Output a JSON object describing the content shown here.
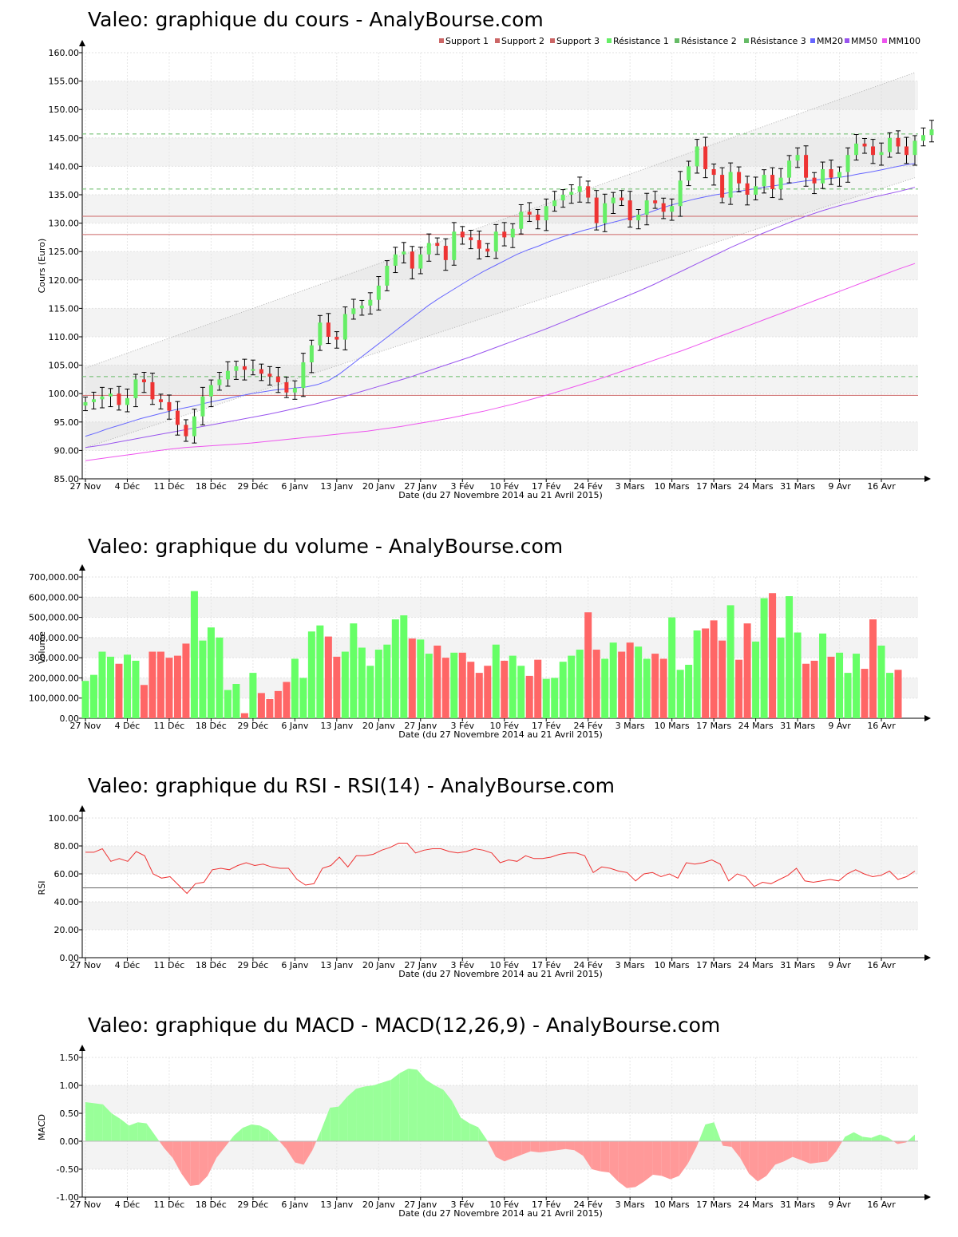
{
  "panels": {
    "price_title": "Valeo: graphique du cours - AnalyBourse.com",
    "volume_title": "Valeo: graphique du volume - AnalyBourse.com",
    "rsi_title": "Valeo: graphique du RSI - RSI(14) - AnalyBourse.com",
    "macd_title": "Valeo: graphique du MACD - MACD(12,26,9) - AnalyBourse.com",
    "xlabel": "Date (du 27 Novembre 2014 au 21 Avril 2015)",
    "price_ylabel": "Cours (Euro)",
    "volume_ylabel": "Volume",
    "rsi_ylabel": "RSI",
    "macd_ylabel": "MACD"
  },
  "colors": {
    "up": "#66ee66",
    "down": "#ee3333",
    "volume_up": "#66ff66",
    "volume_down": "#ff6666",
    "support": "#cc6666",
    "resistance": "#66bb66",
    "mm20": "#6666ff",
    "mm50": "#9955ee",
    "mm100": "#ee55ee",
    "rsi": "#ee3333",
    "macd_pos": "#99ff99",
    "macd_neg": "#ff9999"
  },
  "chart_data": [
    {
      "type": "candlestick",
      "title": "Valeo: graphique du cours - AnalyBourse.com",
      "xlabel": "Date (du 27 Novembre 2014 au 21 Avril 2015)",
      "ylabel": "Cours (Euro)",
      "ylim": [
        85,
        160
      ],
      "yticks": [
        "85.00",
        "90.00",
        "95.00",
        "100.00",
        "105.00",
        "110.00",
        "115.00",
        "120.00",
        "125.00",
        "130.00",
        "135.00",
        "140.00",
        "145.00",
        "150.00",
        "155.00",
        "160.00"
      ],
      "xticks": [
        {
          "i": 0,
          "label": "27 Nov"
        },
        {
          "i": 5,
          "label": "4 Déc"
        },
        {
          "i": 10,
          "label": "11 Déc"
        },
        {
          "i": 15,
          "label": "18 Déc"
        },
        {
          "i": 20,
          "label": "29 Déc"
        },
        {
          "i": 25,
          "label": "6 Janv"
        },
        {
          "i": 30,
          "label": "13 Janv"
        },
        {
          "i": 35,
          "label": "20 Janv"
        },
        {
          "i": 40,
          "label": "27 Janv"
        },
        {
          "i": 45,
          "label": "3 Fév"
        },
        {
          "i": 50,
          "label": "10 Fév"
        },
        {
          "i": 55,
          "label": "17 Fév"
        },
        {
          "i": 60,
          "label": "24 Fév"
        },
        {
          "i": 65,
          "label": "3 Mars"
        },
        {
          "i": 70,
          "label": "10 Mars"
        },
        {
          "i": 75,
          "label": "17 Mars"
        },
        {
          "i": 80,
          "label": "24 Mars"
        },
        {
          "i": 85,
          "label": "31 Mars"
        },
        {
          "i": 90,
          "label": "9 Avr"
        },
        {
          "i": 95,
          "label": "16 Avr"
        }
      ],
      "legend": [
        "Support 1",
        "Support 2",
        "Support 3",
        "Résistance 1",
        "Résistance 2",
        "Résistance 3",
        "MM20",
        "MM50",
        "MM100"
      ],
      "legend_position": "top-right",
      "levels": {
        "support_1": 131.2,
        "support_2": 128.0,
        "support_3": 99.7,
        "resistance_1": 145.7,
        "resistance_2": 136.0,
        "resistance_3": 103.0
      },
      "channel": {
        "upper": [
          104.5,
          156.5
        ],
        "lower": [
          90.5,
          138.0
        ]
      },
      "close": [
        98.5,
        99.0,
        99.5,
        100.0,
        98.0,
        99.2,
        102.5,
        102.0,
        99.0,
        98.5,
        97.0,
        94.5,
        92.5,
        96.0,
        99.5,
        101.5,
        102.5,
        104.0,
        104.8,
        104.2,
        104.3,
        103.5,
        103.0,
        102.0,
        100.2,
        101.0,
        105.5,
        108.5,
        112.5,
        110.0,
        109.5,
        114.0,
        115.0,
        115.5,
        116.5,
        119.0,
        122.5,
        124.5,
        125.0,
        122.0,
        124.5,
        126.5,
        126.0,
        123.5,
        128.5,
        127.5,
        127.0,
        125.5,
        125.0,
        128.5,
        127.5,
        129.0,
        132.0,
        131.5,
        130.5,
        133.0,
        134.0,
        135.0,
        135.5,
        136.5,
        134.5,
        130.0,
        133.5,
        134.5,
        134.0,
        130.5,
        131.5,
        134.0,
        133.5,
        132.0,
        133.0,
        137.5,
        140.0,
        143.5,
        139.5,
        138.5,
        134.5,
        139.0,
        137.0,
        135.0,
        136.5,
        138.5,
        136.0,
        138.0,
        141.0,
        142.0,
        138.0,
        137.0,
        139.5,
        138.0,
        139.0,
        142.0,
        144.0,
        143.5,
        142.0,
        142.5,
        145.0,
        143.5,
        142.0,
        144.5,
        145.5,
        146.5
      ],
      "ma20": [
        92.5,
        93.1,
        93.8,
        94.4,
        95.0,
        95.6,
        96.1,
        96.6,
        97.1,
        97.5,
        97.9,
        98.4,
        98.8,
        99.2,
        99.6,
        100.0,
        100.3,
        100.6,
        100.8,
        101.0,
        101.2,
        101.6,
        102.3,
        103.5,
        105.0,
        106.5,
        108.0,
        109.5,
        111.0,
        112.5,
        114.0,
        115.5,
        116.8,
        118.0,
        119.2,
        120.4,
        121.5,
        122.5,
        123.5,
        124.5,
        125.3,
        126.0,
        126.8,
        127.5,
        128.1,
        128.7,
        129.2,
        129.8,
        130.3,
        130.8,
        131.3,
        131.9,
        132.6,
        133.2,
        133.7,
        134.2,
        134.6,
        135.0,
        135.3,
        135.6,
        135.9,
        136.2,
        136.5,
        136.8,
        137.1,
        137.4,
        137.6,
        137.8,
        138.0,
        138.3,
        138.7,
        139.0,
        139.4,
        139.8,
        140.2,
        140.5
      ],
      "ma50": [
        90.5,
        90.9,
        91.4,
        91.9,
        92.4,
        92.9,
        93.4,
        93.9,
        94.4,
        94.9,
        95.4,
        95.9,
        96.4,
        97.0,
        97.6,
        98.2,
        98.9,
        99.6,
        100.4,
        101.2,
        102.0,
        102.8,
        103.7,
        104.6,
        105.5,
        106.4,
        107.4,
        108.4,
        109.4,
        110.4,
        111.4,
        112.5,
        113.6,
        114.7,
        115.8,
        116.9,
        118.0,
        119.2,
        120.5,
        121.8,
        123.1,
        124.4,
        125.7,
        126.9,
        128.1,
        129.2,
        130.3,
        131.3,
        132.2,
        133.0,
        133.7,
        134.4,
        135.0,
        135.6,
        136.3
      ],
      "ma100": [
        88.2,
        88.6,
        89.0,
        89.4,
        89.8,
        90.2,
        90.5,
        90.7,
        90.9,
        91.1,
        91.3,
        91.6,
        91.9,
        92.2,
        92.5,
        92.8,
        93.1,
        93.4,
        93.8,
        94.2,
        94.7,
        95.2,
        95.7,
        96.3,
        96.9,
        97.6,
        98.3,
        99.1,
        99.9,
        100.8,
        101.7,
        102.6,
        103.6,
        104.6,
        105.6,
        106.6,
        107.6,
        108.7,
        109.8,
        110.9,
        112.0,
        113.1,
        114.2,
        115.3,
        116.4,
        117.5,
        118.6,
        119.7,
        120.8,
        121.9,
        122.9
      ]
    },
    {
      "type": "bar",
      "title": "Valeo: graphique du volume - AnalyBourse.com",
      "xlabel": "Date (du 27 Novembre 2014 au 21 Avril 2015)",
      "ylabel": "Volume",
      "ylim": [
        0,
        700000
      ],
      "yticks": [
        "0.00",
        "100,000.00",
        "200,000.00",
        "300,000.00",
        "400,000.00",
        "500,000.00",
        "600,000.00",
        "700,000.00"
      ],
      "values": [
        185000,
        215000,
        330000,
        305000,
        270000,
        315000,
        285000,
        165000,
        330000,
        330000,
        300000,
        310000,
        370000,
        630000,
        385000,
        450000,
        400000,
        140000,
        170000,
        25000,
        225000,
        125000,
        95000,
        135000,
        180000,
        295000,
        200000,
        430000,
        460000,
        405000,
        305000,
        330000,
        470000,
        350000,
        260000,
        340000,
        365000,
        490000,
        510000,
        395000,
        390000,
        320000,
        360000,
        300000,
        325000,
        325000,
        280000,
        225000,
        260000,
        365000,
        285000,
        310000,
        260000,
        210000,
        290000,
        195000,
        200000,
        280000,
        310000,
        340000,
        525000,
        340000,
        295000,
        375000,
        330000,
        375000,
        355000,
        295000,
        320000,
        295000,
        500000,
        240000,
        265000,
        435000,
        445000,
        485000,
        385000,
        560000,
        290000,
        470000,
        380000,
        595000,
        620000,
        400000,
        605000,
        425000,
        270000,
        285000,
        420000,
        305000,
        325000,
        225000,
        320000,
        245000,
        490000,
        360000,
        225000,
        240000
      ]
    },
    {
      "type": "line",
      "title": "Valeo: graphique du RSI - RSI(14) - AnalyBourse.com",
      "xlabel": "Date (du 27 Novembre 2014 au 21 Avril 2015)",
      "ylabel": "RSI",
      "ylim": [
        0,
        100
      ],
      "yticks": [
        "0.00",
        "20.00",
        "40.00",
        "60.00",
        "80.00",
        "100.00"
      ],
      "reference": 50,
      "values": [
        75.5,
        75.5,
        78,
        69,
        71,
        69,
        76,
        73,
        60,
        57,
        58,
        52,
        46,
        53,
        54,
        63,
        64,
        63,
        66,
        68,
        66,
        67,
        65,
        64,
        64,
        56,
        52,
        53,
        64,
        66,
        72,
        65,
        73,
        73,
        74,
        77,
        79,
        82,
        82,
        75,
        77,
        78,
        78,
        76,
        75,
        76,
        78,
        77,
        75,
        68,
        70,
        69,
        73,
        71,
        71,
        72,
        74,
        75,
        75,
        73,
        61,
        65,
        64,
        62,
        61,
        55,
        60,
        61,
        58,
        60,
        57,
        68,
        67,
        68,
        70,
        67,
        55,
        60,
        58,
        51,
        54,
        53,
        56,
        59,
        64,
        55,
        54,
        55,
        56,
        55,
        60,
        63,
        60,
        58,
        59,
        62,
        56,
        58,
        62
      ]
    },
    {
      "type": "area",
      "title": "Valeo: graphique du MACD - MACD(12,26,9) - AnalyBourse.com",
      "xlabel": "Date (du 27 Novembre 2014 au 21 Avril 2015)",
      "ylabel": "MACD",
      "ylim": [
        -1.0,
        1.5
      ],
      "yticks": [
        "-1.00",
        "-0.50",
        "0.00",
        "0.50",
        "1.00",
        "1.50"
      ],
      "values": [
        0.7,
        0.68,
        0.66,
        0.5,
        0.4,
        0.28,
        0.34,
        0.32,
        0.1,
        -0.12,
        -0.3,
        -0.58,
        -0.8,
        -0.78,
        -0.62,
        -0.3,
        -0.1,
        0.1,
        0.24,
        0.3,
        0.28,
        0.2,
        0.04,
        -0.14,
        -0.38,
        -0.42,
        -0.16,
        0.2,
        0.6,
        0.62,
        0.8,
        0.94,
        0.98,
        1.0,
        1.05,
        1.1,
        1.22,
        1.3,
        1.28,
        1.1,
        1.0,
        0.92,
        0.72,
        0.42,
        0.32,
        0.25,
        0.02,
        -0.28,
        -0.36,
        -0.3,
        -0.24,
        -0.18,
        -0.2,
        -0.18,
        -0.16,
        -0.14,
        -0.16,
        -0.26,
        -0.5,
        -0.54,
        -0.56,
        -0.72,
        -0.84,
        -0.82,
        -0.72,
        -0.6,
        -0.62,
        -0.68,
        -0.62,
        -0.4,
        -0.1,
        0.3,
        0.34,
        -0.08,
        -0.1,
        -0.3,
        -0.58,
        -0.72,
        -0.62,
        -0.42,
        -0.36,
        -0.28,
        -0.34,
        -0.4,
        -0.38,
        -0.36,
        -0.18,
        0.08,
        0.16,
        0.08,
        0.06,
        0.12,
        0.06,
        -0.05,
        -0.02,
        0.12
      ]
    }
  ]
}
